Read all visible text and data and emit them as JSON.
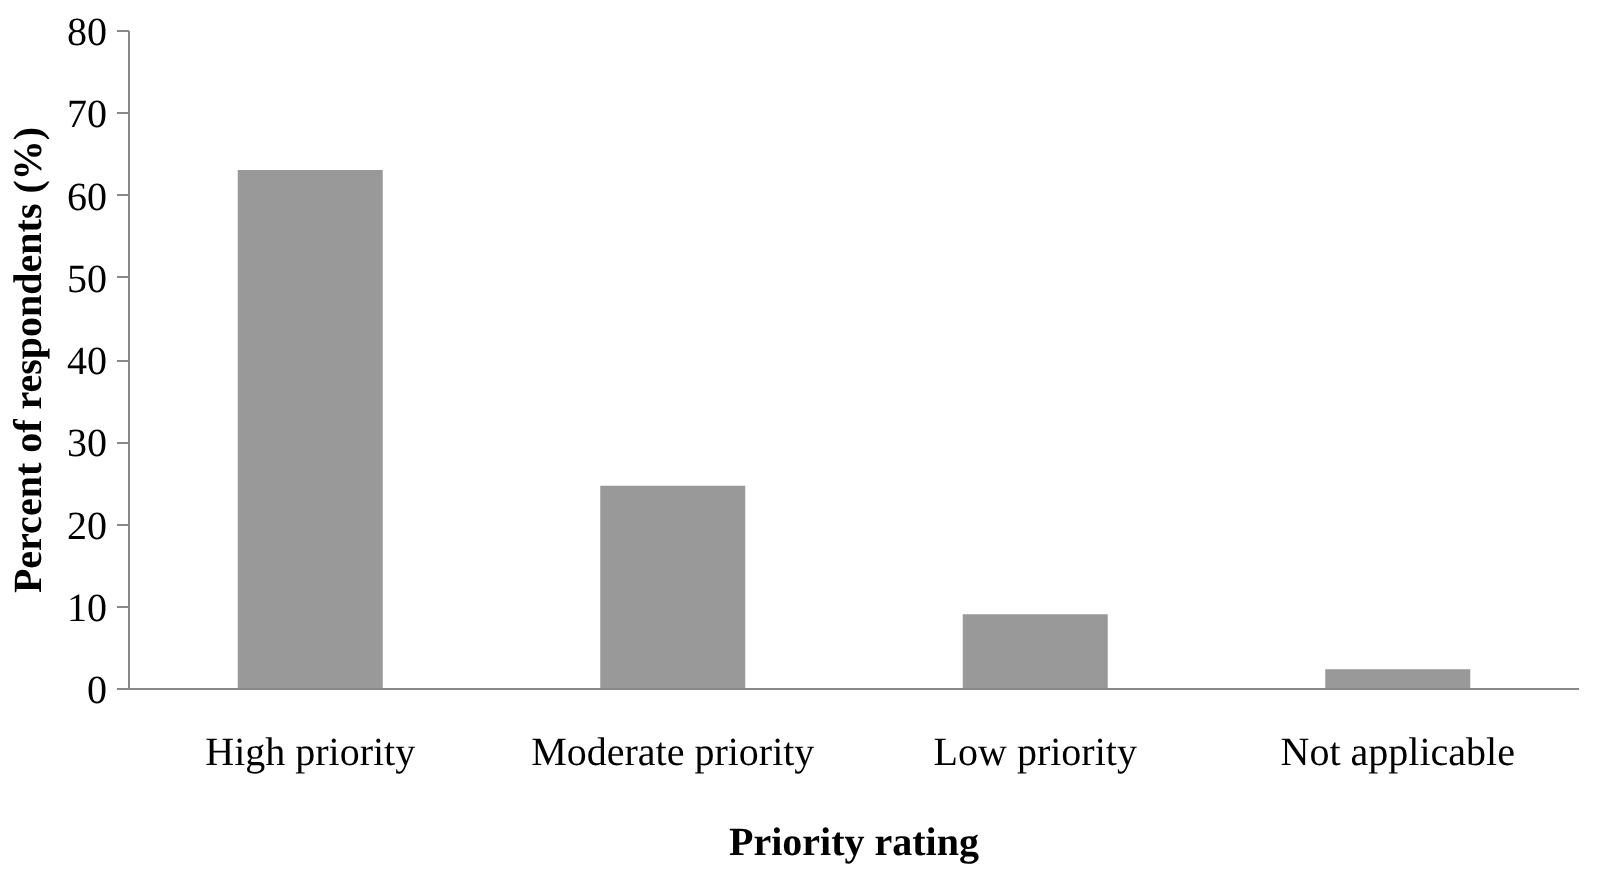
{
  "chart_data": {
    "type": "bar",
    "xlabel": "Priority rating",
    "ylabel": "Percent of respondents (%)",
    "categories": [
      "High priority",
      "Moderate priority",
      "Low priority",
      "Not applicable"
    ],
    "values": [
      63.1,
      24.7,
      9.1,
      2.4
    ],
    "color": "#999999",
    "ylim": [
      0,
      80
    ],
    "yticks": [
      0,
      10,
      20,
      30,
      40,
      50,
      60,
      70,
      80
    ],
    "grid": false
  }
}
